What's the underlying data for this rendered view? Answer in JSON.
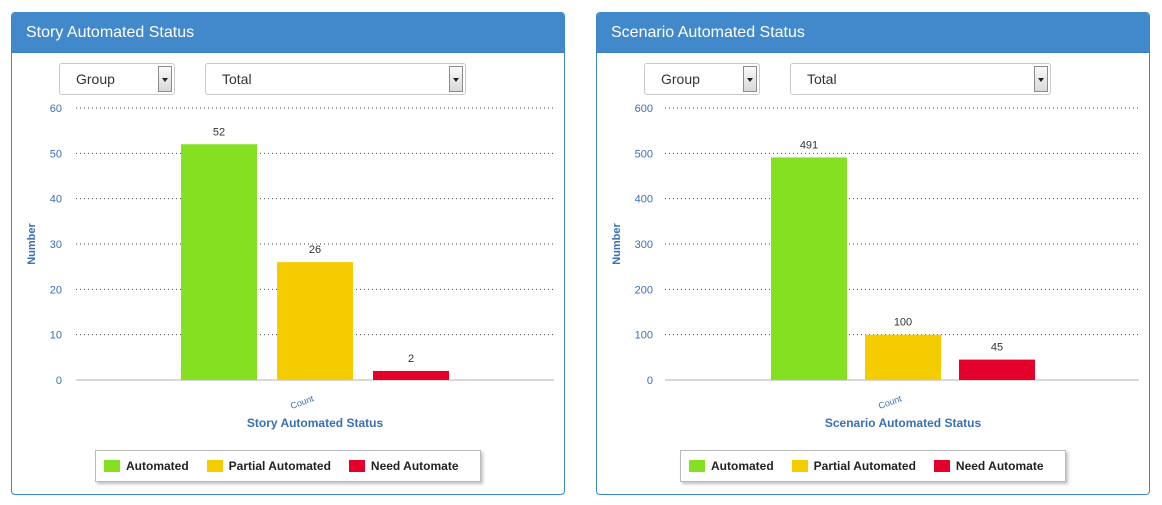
{
  "panels": [
    {
      "title": "Story Automated Status",
      "filters": {
        "group_value": "Group",
        "total_value": "Total"
      },
      "chart_data": {
        "type": "bar",
        "title": "",
        "xlabel": "Story Automated Status",
        "ylabel": "Number",
        "categories": [
          "Count"
        ],
        "ylim": [
          0,
          60
        ],
        "yticks": [
          0,
          10,
          20,
          30,
          40,
          50,
          60
        ],
        "grid": true,
        "legend_position": "bottom",
        "series": [
          {
            "name": "Automated",
            "values": [
              52
            ],
            "color": "#84e021"
          },
          {
            "name": "Partial Automated",
            "values": [
              26
            ],
            "color": "#f5cc00"
          },
          {
            "name": "Need Automate",
            "values": [
              2
            ],
            "color": "#e3002b"
          }
        ]
      }
    },
    {
      "title": "Scenario Automated Status",
      "filters": {
        "group_value": "Group",
        "total_value": "Total"
      },
      "chart_data": {
        "type": "bar",
        "title": "",
        "xlabel": "Scenario Automated Status",
        "ylabel": "Number",
        "categories": [
          "Count"
        ],
        "ylim": [
          0,
          600
        ],
        "yticks": [
          0,
          100,
          200,
          300,
          400,
          500,
          600
        ],
        "grid": true,
        "legend_position": "bottom",
        "series": [
          {
            "name": "Automated",
            "values": [
              491
            ],
            "color": "#84e021"
          },
          {
            "name": "Partial Automated",
            "values": [
              100
            ],
            "color": "#f5cc00"
          },
          {
            "name": "Need Automate",
            "values": [
              45
            ],
            "color": "#e3002b"
          }
        ]
      }
    }
  ]
}
